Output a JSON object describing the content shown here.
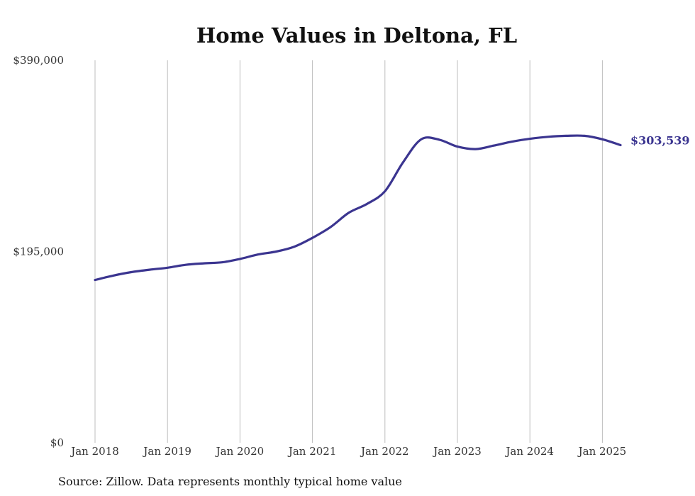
{
  "chart_data": {
    "type": "line",
    "title": "Home Values in Deltona, FL",
    "xlabel": "",
    "ylabel": "",
    "ylim": [
      0,
      390000
    ],
    "y_ticks": [
      {
        "value": 0,
        "label": "$0"
      },
      {
        "value": 195000,
        "label": "$195,000"
      },
      {
        "value": 390000,
        "label": "$390,000"
      }
    ],
    "x_ticks": [
      "Jan 2018",
      "Jan 2019",
      "Jan 2020",
      "Jan 2021",
      "Jan 2022",
      "Jan 2023",
      "Jan 2024",
      "Jan 2025"
    ],
    "grid": "vertical",
    "series": [
      {
        "color": "#3b3590",
        "points": [
          [
            "2018-01",
            166000
          ],
          [
            "2018-04",
            170500
          ],
          [
            "2018-07",
            174000
          ],
          [
            "2018-10",
            176500
          ],
          [
            "2019-01",
            178500
          ],
          [
            "2019-04",
            181500
          ],
          [
            "2019-07",
            183000
          ],
          [
            "2019-10",
            184000
          ],
          [
            "2020-01",
            187500
          ],
          [
            "2020-04",
            192000
          ],
          [
            "2020-07",
            195000
          ],
          [
            "2020-10",
            200000
          ],
          [
            "2021-01",
            209000
          ],
          [
            "2021-04",
            220000
          ],
          [
            "2021-07",
            234500
          ],
          [
            "2021-10",
            243500
          ],
          [
            "2022-01",
            256500
          ],
          [
            "2022-04",
            286000
          ],
          [
            "2022-07",
            309500
          ],
          [
            "2022-10",
            309000
          ],
          [
            "2023-01",
            302000
          ],
          [
            "2023-04",
            299500
          ],
          [
            "2023-07",
            303000
          ],
          [
            "2023-10",
            307000
          ],
          [
            "2024-01",
            310000
          ],
          [
            "2024-04",
            312000
          ],
          [
            "2024-07",
            313000
          ],
          [
            "2024-10",
            313000
          ],
          [
            "2025-01",
            309500
          ],
          [
            "2025-04",
            303539
          ]
        ]
      }
    ],
    "end_label": "$303,539",
    "source": "Source: Zillow. Data represents monthly typical home value"
  }
}
